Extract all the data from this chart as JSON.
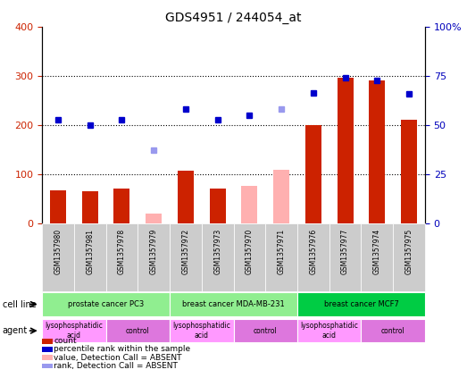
{
  "title": "GDS4951 / 244054_at",
  "samples": [
    "GSM1357980",
    "GSM1357981",
    "GSM1357978",
    "GSM1357979",
    "GSM1357972",
    "GSM1357973",
    "GSM1357970",
    "GSM1357971",
    "GSM1357976",
    "GSM1357977",
    "GSM1357974",
    "GSM1357975"
  ],
  "count_values": [
    67,
    65,
    70,
    0,
    107,
    70,
    0,
    0,
    200,
    295,
    290,
    210
  ],
  "count_absent": [
    false,
    false,
    false,
    true,
    false,
    false,
    true,
    true,
    false,
    false,
    false,
    false
  ],
  "count_absent_values": [
    0,
    0,
    0,
    20,
    0,
    0,
    75,
    108,
    0,
    0,
    0,
    0
  ],
  "rank_values": [
    210,
    200,
    210,
    0,
    232,
    210,
    220,
    0,
    265,
    295,
    290,
    262
  ],
  "rank_absent": [
    false,
    false,
    false,
    true,
    false,
    false,
    false,
    true,
    false,
    false,
    false,
    false
  ],
  "rank_absent_values": [
    0,
    0,
    0,
    148,
    0,
    0,
    0,
    232,
    0,
    0,
    0,
    0
  ],
  "cell_lines": [
    {
      "label": "prostate cancer PC3",
      "start": 0,
      "end": 4,
      "color": "#90EE90"
    },
    {
      "label": "breast cancer MDA-MB-231",
      "start": 4,
      "end": 8,
      "color": "#90EE90"
    },
    {
      "label": "breast cancer MCF7",
      "start": 8,
      "end": 12,
      "color": "#00CC44"
    }
  ],
  "agents": [
    {
      "label": "lysophosphatidic\nacid",
      "start": 0,
      "end": 2,
      "color": "#FF99FF"
    },
    {
      "label": "control",
      "start": 2,
      "end": 4,
      "color": "#DD77DD"
    },
    {
      "label": "lysophosphatidic\nacid",
      "start": 4,
      "end": 6,
      "color": "#FF99FF"
    },
    {
      "label": "control",
      "start": 6,
      "end": 8,
      "color": "#DD77DD"
    },
    {
      "label": "lysophosphatidic\nacid",
      "start": 8,
      "end": 10,
      "color": "#FF99FF"
    },
    {
      "label": "control",
      "start": 10,
      "end": 12,
      "color": "#DD77DD"
    }
  ],
  "left_ylim": [
    0,
    400
  ],
  "left_yticks": [
    0,
    100,
    200,
    300,
    400
  ],
  "right_ylim": [
    0,
    100
  ],
  "right_yticks": [
    0,
    25,
    50,
    75,
    100
  ],
  "bar_color_present": "#CC2200",
  "bar_color_absent": "#FFB0B0",
  "dot_color_present": "#0000CC",
  "dot_color_absent": "#9999EE",
  "bg_plot": "#FFFFFF",
  "bg_sample": "#CCCCCC",
  "legend_items": [
    {
      "label": "count",
      "color": "#CC2200",
      "type": "rect"
    },
    {
      "label": "percentile rank within the sample",
      "color": "#0000CC",
      "type": "rect"
    },
    {
      "label": "value, Detection Call = ABSENT",
      "color": "#FFB0B0",
      "type": "rect"
    },
    {
      "label": "rank, Detection Call = ABSENT",
      "color": "#9999EE",
      "type": "rect"
    }
  ]
}
